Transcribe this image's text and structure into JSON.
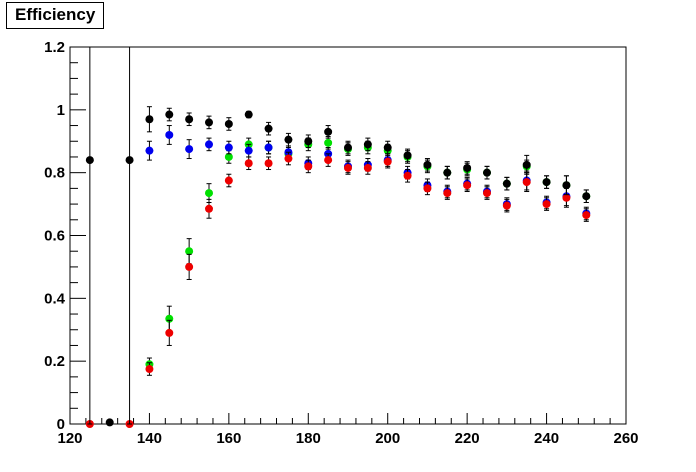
{
  "chart_data": {
    "type": "scatter",
    "title": "Efficiency",
    "xlim": [
      120,
      260
    ],
    "ylim": [
      0,
      1.2
    ],
    "x_ticks": [
      "120",
      "140",
      "160",
      "180",
      "200",
      "220",
      "240",
      "260"
    ],
    "y_ticks": [
      "0",
      "0.2",
      "0.4",
      "0.6",
      "0.8",
      "1",
      "1.2"
    ],
    "x_tick_values": [
      120,
      140,
      160,
      180,
      200,
      220,
      240,
      260
    ],
    "y_tick_values": [
      0,
      0.2,
      0.4,
      0.6,
      0.8,
      1.0,
      1.2
    ],
    "grid": false,
    "series": [
      {
        "color": "#00e000",
        "points": [
          [
            140,
            0.19,
            0.02
          ],
          [
            145,
            0.335,
            0.04
          ],
          [
            150,
            0.55,
            0.04
          ],
          [
            155,
            0.735,
            0.03
          ],
          [
            160,
            0.85,
            0.02
          ],
          [
            165,
            0.89,
            0.02
          ],
          [
            170,
            0.88,
            0.02
          ],
          [
            175,
            0.86,
            0.02
          ],
          [
            180,
            0.89,
            0.02
          ],
          [
            185,
            0.895,
            0.02
          ],
          [
            190,
            0.875,
            0.02
          ],
          [
            195,
            0.88,
            0.02
          ],
          [
            200,
            0.87,
            0.02
          ],
          [
            205,
            0.85,
            0.02
          ],
          [
            210,
            0.82,
            0.02
          ],
          [
            215,
            0.8,
            0.02
          ],
          [
            220,
            0.81,
            0.02
          ],
          [
            225,
            0.8,
            0.02
          ],
          [
            230,
            0.765,
            0.02
          ],
          [
            235,
            0.82,
            0.02
          ],
          [
            240,
            0.77,
            0.02
          ],
          [
            245,
            0.76,
            0.03
          ],
          [
            250,
            0.725,
            0.02
          ]
        ]
      },
      {
        "color": "#0000ee",
        "points": [
          [
            140,
            0.87,
            0.03
          ],
          [
            145,
            0.92,
            0.03
          ],
          [
            150,
            0.875,
            0.03
          ],
          [
            155,
            0.89,
            0.02
          ],
          [
            160,
            0.88,
            0.02
          ],
          [
            165,
            0.87,
            0.02
          ],
          [
            170,
            0.88,
            0.02
          ],
          [
            175,
            0.865,
            0.02
          ],
          [
            180,
            0.83,
            0.02
          ],
          [
            185,
            0.86,
            0.02
          ],
          [
            190,
            0.82,
            0.02
          ],
          [
            195,
            0.825,
            0.02
          ],
          [
            200,
            0.84,
            0.02
          ],
          [
            205,
            0.8,
            0.02
          ],
          [
            210,
            0.76,
            0.02
          ],
          [
            215,
            0.74,
            0.02
          ],
          [
            220,
            0.765,
            0.02
          ],
          [
            225,
            0.74,
            0.02
          ],
          [
            230,
            0.7,
            0.02
          ],
          [
            235,
            0.775,
            0.03
          ],
          [
            240,
            0.705,
            0.02
          ],
          [
            245,
            0.725,
            0.03
          ],
          [
            250,
            0.67,
            0.02
          ]
        ]
      },
      {
        "color": "#ee0000",
        "points": [
          [
            125,
            0.0,
            0.0
          ],
          [
            135,
            0.0,
            0.0
          ],
          [
            140,
            0.175,
            0.02
          ],
          [
            145,
            0.29,
            0.04
          ],
          [
            150,
            0.5,
            0.04
          ],
          [
            155,
            0.685,
            0.03
          ],
          [
            160,
            0.775,
            0.02
          ],
          [
            165,
            0.83,
            0.02
          ],
          [
            170,
            0.83,
            0.02
          ],
          [
            175,
            0.845,
            0.02
          ],
          [
            180,
            0.82,
            0.02
          ],
          [
            185,
            0.84,
            0.02
          ],
          [
            190,
            0.815,
            0.02
          ],
          [
            195,
            0.815,
            0.02
          ],
          [
            200,
            0.835,
            0.02
          ],
          [
            205,
            0.79,
            0.02
          ],
          [
            210,
            0.75,
            0.02
          ],
          [
            215,
            0.735,
            0.02
          ],
          [
            220,
            0.76,
            0.02
          ],
          [
            225,
            0.735,
            0.02
          ],
          [
            230,
            0.695,
            0.02
          ],
          [
            235,
            0.77,
            0.03
          ],
          [
            240,
            0.7,
            0.02
          ],
          [
            245,
            0.72,
            0.03
          ],
          [
            250,
            0.665,
            0.02
          ]
        ]
      },
      {
        "color": "#000000",
        "points": [
          [
            125,
            0.84,
            0.84
          ],
          [
            130,
            0.005,
            0.005
          ],
          [
            135,
            0.84,
            0.84
          ],
          [
            140,
            0.97,
            0.04
          ],
          [
            145,
            0.985,
            0.02
          ],
          [
            150,
            0.97,
            0.02
          ],
          [
            155,
            0.96,
            0.02
          ],
          [
            160,
            0.955,
            0.02
          ],
          [
            165,
            0.985,
            0.01
          ],
          [
            170,
            0.94,
            0.02
          ],
          [
            175,
            0.905,
            0.02
          ],
          [
            180,
            0.9,
            0.02
          ],
          [
            185,
            0.93,
            0.02
          ],
          [
            190,
            0.88,
            0.02
          ],
          [
            195,
            0.89,
            0.02
          ],
          [
            200,
            0.88,
            0.02
          ],
          [
            205,
            0.855,
            0.02
          ],
          [
            210,
            0.825,
            0.02
          ],
          [
            215,
            0.8,
            0.02
          ],
          [
            220,
            0.815,
            0.02
          ],
          [
            225,
            0.8,
            0.02
          ],
          [
            230,
            0.765,
            0.02
          ],
          [
            235,
            0.825,
            0.03
          ],
          [
            240,
            0.77,
            0.02
          ],
          [
            245,
            0.76,
            0.03
          ],
          [
            250,
            0.725,
            0.02
          ]
        ]
      }
    ]
  }
}
